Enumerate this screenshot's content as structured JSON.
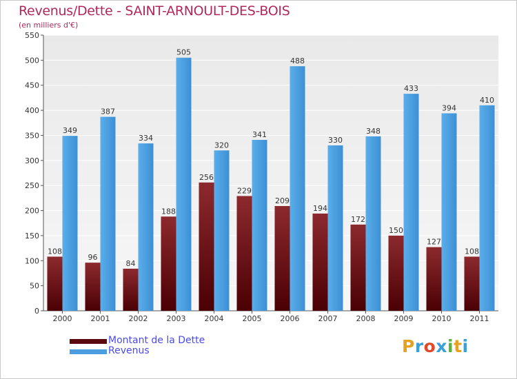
{
  "chart_data": {
    "type": "bar",
    "title": "Revenus/Dette - SAINT-ARNOULT-DES-BOIS",
    "subtitle": "(en milliers d'€)",
    "categories": [
      "2000",
      "2001",
      "2002",
      "2003",
      "2004",
      "2005",
      "2006",
      "2007",
      "2008",
      "2009",
      "2010",
      "2011"
    ],
    "series": [
      {
        "name": "Montant de la Dette",
        "color": "#7a1418",
        "values": [
          108,
          96,
          84,
          188,
          256,
          229,
          209,
          194,
          172,
          150,
          127,
          108
        ]
      },
      {
        "name": "Revenus",
        "color": "#4a9ee0",
        "values": [
          349,
          387,
          334,
          505,
          320,
          341,
          488,
          330,
          348,
          433,
          394,
          410
        ]
      }
    ],
    "ylim": [
      0,
      550
    ],
    "yticks": [
      0,
      50,
      100,
      150,
      200,
      250,
      300,
      350,
      400,
      450,
      500,
      550
    ],
    "grid": true,
    "legend_position": "bottom-left"
  },
  "logo": {
    "letters": [
      "P",
      "r",
      "o",
      "x",
      "i",
      "t",
      "i"
    ],
    "colors": [
      "#e8a020",
      "#3aa0d8",
      "#e04a2a",
      "#3aa0d8",
      "#5ab040",
      "#e8a020",
      "#3aa0d8"
    ]
  }
}
